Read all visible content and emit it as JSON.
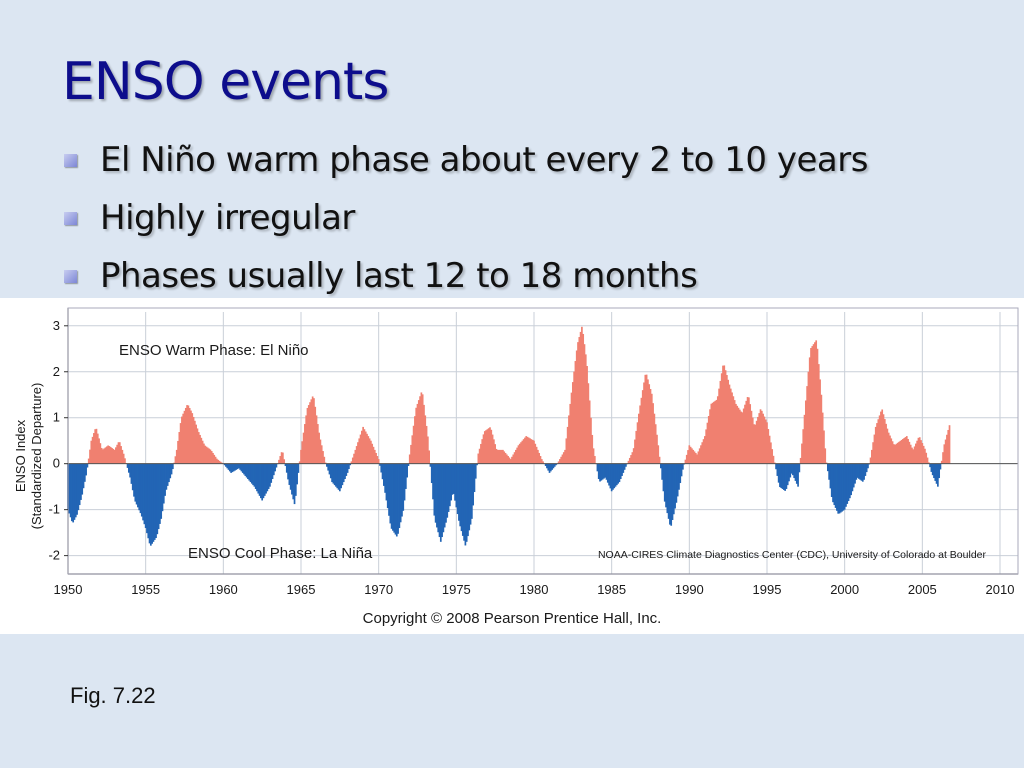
{
  "slide": {
    "title": "ENSO events",
    "bullets": [
      "El Niño warm phase about every 2 to 10 years",
      "Highly irregular",
      "Phases usually last 12 to 18 months"
    ],
    "caption": "Fig. 7.22"
  },
  "colors": {
    "title": "#0d0d8c",
    "background": "#dce6f2",
    "warm": "#f08070",
    "cool": "#2265b5",
    "grid": "#c9cfd8"
  },
  "chart_data": {
    "type": "area",
    "ylabel": "ENSO Index\n(Standardized Departure)",
    "xlim": [
      1950,
      2010
    ],
    "ylim": [
      -2.4,
      3.3
    ],
    "grid": true,
    "xticks": [
      1950,
      1955,
      1960,
      1965,
      1970,
      1975,
      1980,
      1985,
      1990,
      1995,
      2000,
      2005,
      2010
    ],
    "yticks": [
      -2,
      -1,
      0,
      1,
      2,
      3
    ],
    "annotations": {
      "warm": "ENSO Warm Phase: El Niño",
      "cool": "ENSO Cool Phase: La Niña",
      "source": "NOAA-CIRES Climate Diagnostics Center (CDC), University of Colorado at Boulder",
      "copyright": "Copyright © 2008 Pearson Prentice Hall, Inc."
    },
    "series": [
      {
        "x": [
          1950.0,
          1950.3,
          1950.6,
          1950.9,
          1951.2,
          1951.5,
          1951.8,
          1952.2,
          1952.6,
          1953.0,
          1953.3,
          1953.6,
          1954.0,
          1954.3,
          1954.7,
          1955.0,
          1955.3,
          1955.7,
          1956.0,
          1956.3,
          1956.7,
          1957.0,
          1957.3,
          1957.7,
          1958.0,
          1958.4,
          1958.8,
          1959.2,
          1959.6,
          1960.0,
          1960.5,
          1961.0,
          1961.5,
          1962.0,
          1962.5,
          1963.0,
          1963.4,
          1963.8,
          1964.2,
          1964.6,
          1965.0,
          1965.4,
          1965.8,
          1966.2,
          1966.6,
          1967.0,
          1967.5,
          1968.0,
          1968.5,
          1969.0,
          1969.5,
          1970.0,
          1970.4,
          1970.8,
          1971.2,
          1971.6,
          1972.0,
          1972.4,
          1972.8,
          1973.2,
          1973.6,
          1974.0,
          1974.4,
          1974.8,
          1975.2,
          1975.6,
          1976.0,
          1976.4,
          1976.8,
          1977.2,
          1977.6,
          1978.0,
          1978.5,
          1979.0,
          1979.5,
          1980.0,
          1980.5,
          1981.0,
          1981.5,
          1982.0,
          1982.4,
          1982.8,
          1983.1,
          1983.4,
          1983.8,
          1984.2,
          1984.6,
          1985.0,
          1985.5,
          1986.0,
          1986.4,
          1986.8,
          1987.2,
          1987.6,
          1988.0,
          1988.4,
          1988.8,
          1989.2,
          1989.6,
          1990.0,
          1990.5,
          1991.0,
          1991.4,
          1991.8,
          1992.2,
          1992.6,
          1993.0,
          1993.4,
          1993.8,
          1994.2,
          1994.6,
          1995.0,
          1995.4,
          1995.8,
          1996.2,
          1996.6,
          1997.0,
          1997.4,
          1997.8,
          1998.2,
          1998.5,
          1998.8,
          1999.2,
          1999.6,
          2000.0,
          2000.4,
          2000.8,
          2001.2,
          2001.6,
          2002.0,
          2002.4,
          2002.8,
          2003.2,
          2003.6,
          2004.0,
          2004.4,
          2004.8,
          2005.2,
          2005.6,
          2006.0,
          2006.4,
          2006.8
        ],
        "values": [
          -1.0,
          -1.3,
          -1.1,
          -0.7,
          -0.2,
          0.5,
          0.8,
          0.3,
          0.4,
          0.3,
          0.5,
          0.2,
          -0.3,
          -0.8,
          -1.1,
          -1.4,
          -1.8,
          -1.6,
          -1.2,
          -0.6,
          -0.2,
          0.3,
          1.0,
          1.3,
          1.1,
          0.7,
          0.4,
          0.3,
          0.1,
          0.0,
          -0.2,
          -0.1,
          -0.3,
          -0.5,
          -0.8,
          -0.5,
          -0.1,
          0.3,
          -0.4,
          -0.9,
          0.3,
          1.2,
          1.5,
          0.6,
          0.0,
          -0.4,
          -0.6,
          -0.2,
          0.3,
          0.8,
          0.5,
          0.1,
          -0.6,
          -1.4,
          -1.6,
          -1.0,
          0.2,
          1.2,
          1.6,
          0.5,
          -1.2,
          -1.7,
          -1.2,
          -0.6,
          -1.3,
          -1.8,
          -1.2,
          0.2,
          0.7,
          0.8,
          0.3,
          0.3,
          0.1,
          0.4,
          0.6,
          0.5,
          0.1,
          -0.2,
          0.0,
          0.3,
          1.5,
          2.6,
          3.0,
          2.2,
          0.4,
          -0.4,
          -0.3,
          -0.6,
          -0.4,
          0.0,
          0.3,
          1.2,
          2.0,
          1.5,
          0.4,
          -0.8,
          -1.4,
          -0.8,
          -0.1,
          0.4,
          0.2,
          0.6,
          1.3,
          1.4,
          2.2,
          1.7,
          1.3,
          1.1,
          1.5,
          0.8,
          1.2,
          0.9,
          0.2,
          -0.5,
          -0.6,
          -0.2,
          -0.5,
          1.0,
          2.5,
          2.7,
          1.5,
          0.1,
          -0.8,
          -1.1,
          -1.0,
          -0.7,
          -0.3,
          -0.4,
          0.0,
          0.8,
          1.2,
          0.7,
          0.4,
          0.5,
          0.6,
          0.3,
          0.6,
          0.3,
          -0.2,
          -0.5,
          0.4,
          0.9
        ]
      }
    ]
  }
}
